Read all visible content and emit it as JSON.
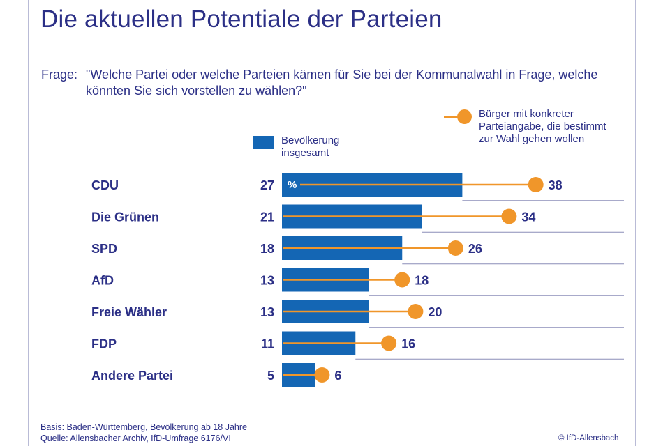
{
  "title": "Die aktuellen Potentiale der Parteien",
  "question": {
    "label": "Frage:",
    "text": "\"Welche Partei oder welche Parteien kämen für Sie bei der Kommunalwahl in Frage, welche könnten Sie sich vorstellen zu wählen?\""
  },
  "legend": {
    "bar_label": "Bevölkerung insgesamt",
    "dot_label": "Bürger mit konkreter Parteiangabe, die bestimmt zur Wahl gehen wollen"
  },
  "colors": {
    "bar": "#1466b4",
    "dot": "#f0962a",
    "text": "#2b2f86"
  },
  "chart_data": {
    "type": "bar",
    "orientation": "horizontal",
    "unit_label": "%",
    "categories": [
      "CDU",
      "Die Grünen",
      "SPD",
      "AfD",
      "Freie Wähler",
      "FDP",
      "Andere Partei"
    ],
    "series": [
      {
        "name": "Bevölkerung insgesamt",
        "type": "bar",
        "values": [
          27,
          21,
          18,
          13,
          13,
          11,
          5
        ]
      },
      {
        "name": "Bürger mit konkreter Parteiangabe, die bestimmt zur Wahl gehen wollen",
        "type": "dot",
        "values": [
          38,
          34,
          26,
          18,
          20,
          16,
          6
        ]
      }
    ],
    "xlim": [
      0,
      50
    ],
    "grid": false
  },
  "footer": {
    "basis": "Basis: Baden-Württemberg, Bevölkerung ab 18 Jahre",
    "source": "Quelle: Allensbacher Archiv, IfD-Umfrage 6176/VI",
    "copyright": "© IfD-Allensbach"
  }
}
